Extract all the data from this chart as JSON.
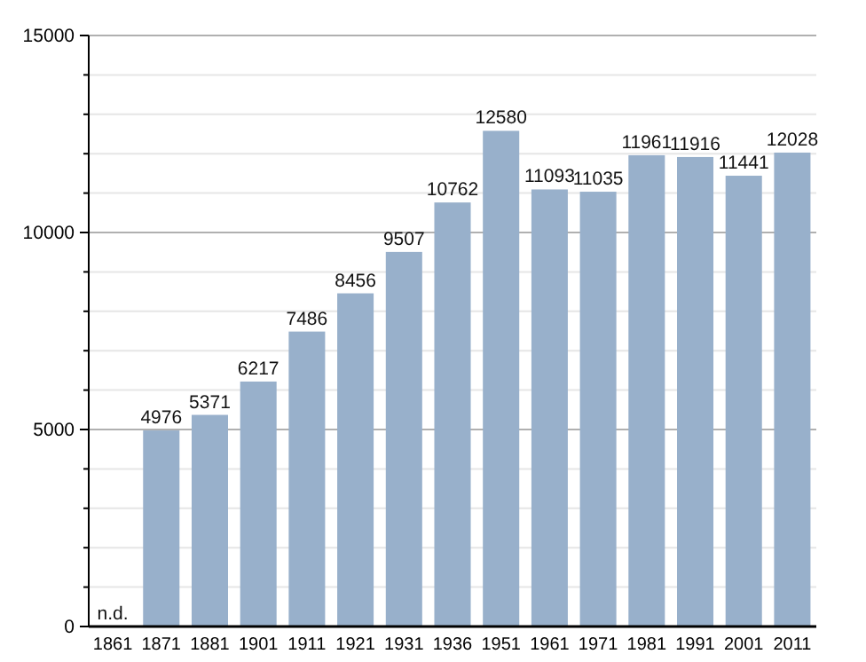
{
  "chart_data": {
    "type": "bar",
    "categories": [
      "1861",
      "1871",
      "1881",
      "1901",
      "1911",
      "1921",
      "1931",
      "1936",
      "1951",
      "1961",
      "1971",
      "1981",
      "1991",
      "2001",
      "2011"
    ],
    "values": [
      null,
      4976,
      5371,
      6217,
      7486,
      8456,
      9507,
      10762,
      12580,
      11093,
      11035,
      11961,
      11916,
      11441,
      12028
    ],
    "value_labels": [
      "n.d.",
      "4976",
      "5371",
      "6217",
      "7486",
      "8456",
      "9507",
      "10762",
      "12580",
      "11093",
      "11035",
      "11961",
      "11916",
      "11441",
      "12028"
    ],
    "color": "#98b0cb",
    "ylim": [
      0,
      15000
    ],
    "yticks": [
      0,
      {
        "value": 1000,
        "label": null
      },
      {
        "value": 2000,
        "label": null
      },
      {
        "value": 3000,
        "label": null
      },
      {
        "value": 4000,
        "label": null
      },
      5000,
      {
        "value": 6000,
        "label": null
      },
      {
        "value": 7000,
        "label": null
      },
      {
        "value": 8000,
        "label": null
      },
      {
        "value": 9000,
        "label": null
      },
      10000,
      {
        "value": 11000,
        "label": null
      },
      {
        "value": 12000,
        "label": null
      },
      {
        "value": 13000,
        "label": null
      },
      {
        "value": 14000,
        "label": null
      },
      15000
    ],
    "grid": true
  }
}
